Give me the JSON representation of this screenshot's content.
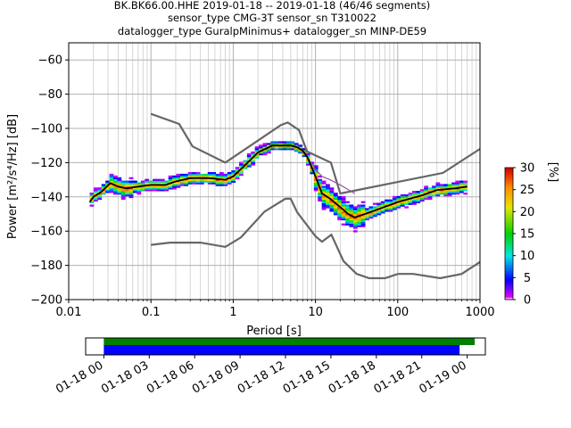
{
  "chart_data": {
    "type": "heatmap",
    "title_lines": [
      "BK.BK66.00.HHE   2019-01-18 -- 2019-01-18  (46/46 segments)",
      "sensor_type CMG-3T sensor_sn T310022",
      "datalogger_type GuralpMinimus+ datalogger_sn MINP-DE59"
    ],
    "xlabel": "Period [s]",
    "ylabel": "Power [m²/s⁴/Hz] [dB]",
    "x_scale": "log",
    "xlim": [
      0.01,
      1000
    ],
    "ylim": [
      -200,
      -50
    ],
    "x_tick_labels": [
      "0.01",
      "0.1",
      "1",
      "10",
      "100",
      "1000"
    ],
    "y_tick_labels": [
      "-60",
      "-80",
      "-100",
      "-120",
      "-140",
      "-160",
      "-180",
      "-200"
    ],
    "grid": true,
    "colorbar": {
      "label": "[%]",
      "range": [
        0,
        30
      ],
      "tick_labels": [
        "0",
        "5",
        "10",
        "15",
        "20",
        "25",
        "30"
      ]
    },
    "noise_model_high": {
      "x": [
        0.1,
        0.22,
        0.32,
        0.8,
        3.8,
        4.6,
        6.3,
        7.9,
        15.4,
        20,
        354.8,
        1000
      ],
      "y": [
        -91.5,
        -97.4,
        -110.5,
        -120,
        -98,
        -96.5,
        -101,
        -113.5,
        -120,
        -138,
        -126,
        -112
      ]
    },
    "noise_model_low": {
      "x": [
        0.1,
        0.17,
        0.4,
        0.8,
        1.24,
        2.4,
        4.3,
        5,
        6,
        10,
        12,
        15.6,
        21.9,
        31.6,
        45,
        70,
        101,
        154,
        328,
        600,
        1000
      ],
      "y": [
        -168,
        -166.7,
        -166.7,
        -169.2,
        -163.7,
        -148.6,
        -141.1,
        -141.1,
        -149,
        -163,
        -166.2,
        -162.1,
        -177.5,
        -185,
        -187.5,
        -187.5,
        -185,
        -185,
        -187.5,
        -185,
        -178
      ]
    },
    "mode_curve": {
      "x": [
        0.018,
        0.02,
        0.025,
        0.032,
        0.04,
        0.05,
        0.07,
        0.1,
        0.15,
        0.2,
        0.3,
        0.5,
        0.8,
        1.0,
        1.5,
        2.0,
        3.0,
        4.0,
        5.0,
        6.0,
        7.0,
        8.0,
        10,
        12,
        15,
        20,
        25,
        30,
        40,
        60,
        100,
        200,
        300,
        500,
        700
      ],
      "y": [
        -143,
        -140,
        -137,
        -132,
        -134,
        -135,
        -134,
        -133,
        -133,
        -131,
        -129,
        -129,
        -130,
        -128,
        -120,
        -114,
        -110,
        -110,
        -110,
        -111,
        -113,
        -117,
        -128,
        -138,
        -141,
        -146,
        -150,
        -152,
        -150,
        -147,
        -143,
        -139,
        -136,
        -135,
        -134
      ]
    },
    "extra_high_curve": {
      "x": [
        8,
        10,
        12,
        15,
        20,
        30
      ],
      "y": [
        -117,
        -124,
        -128,
        -130,
        -133,
        -138
      ]
    },
    "time_axis": {
      "tick_labels": [
        "01-18 00",
        "01-18 03",
        "01-18 06",
        "01-18 09",
        "01-18 12",
        "01-18 15",
        "01-18 18",
        "01-18 21",
        "01-19 00"
      ],
      "range_hours": [
        -1.2,
        25.2
      ],
      "green_bar_hours": [
        0,
        24.5
      ],
      "blue_bar_hours": [
        0,
        23.5
      ],
      "green_color": "#008000",
      "blue_color": "#0000ff"
    }
  }
}
